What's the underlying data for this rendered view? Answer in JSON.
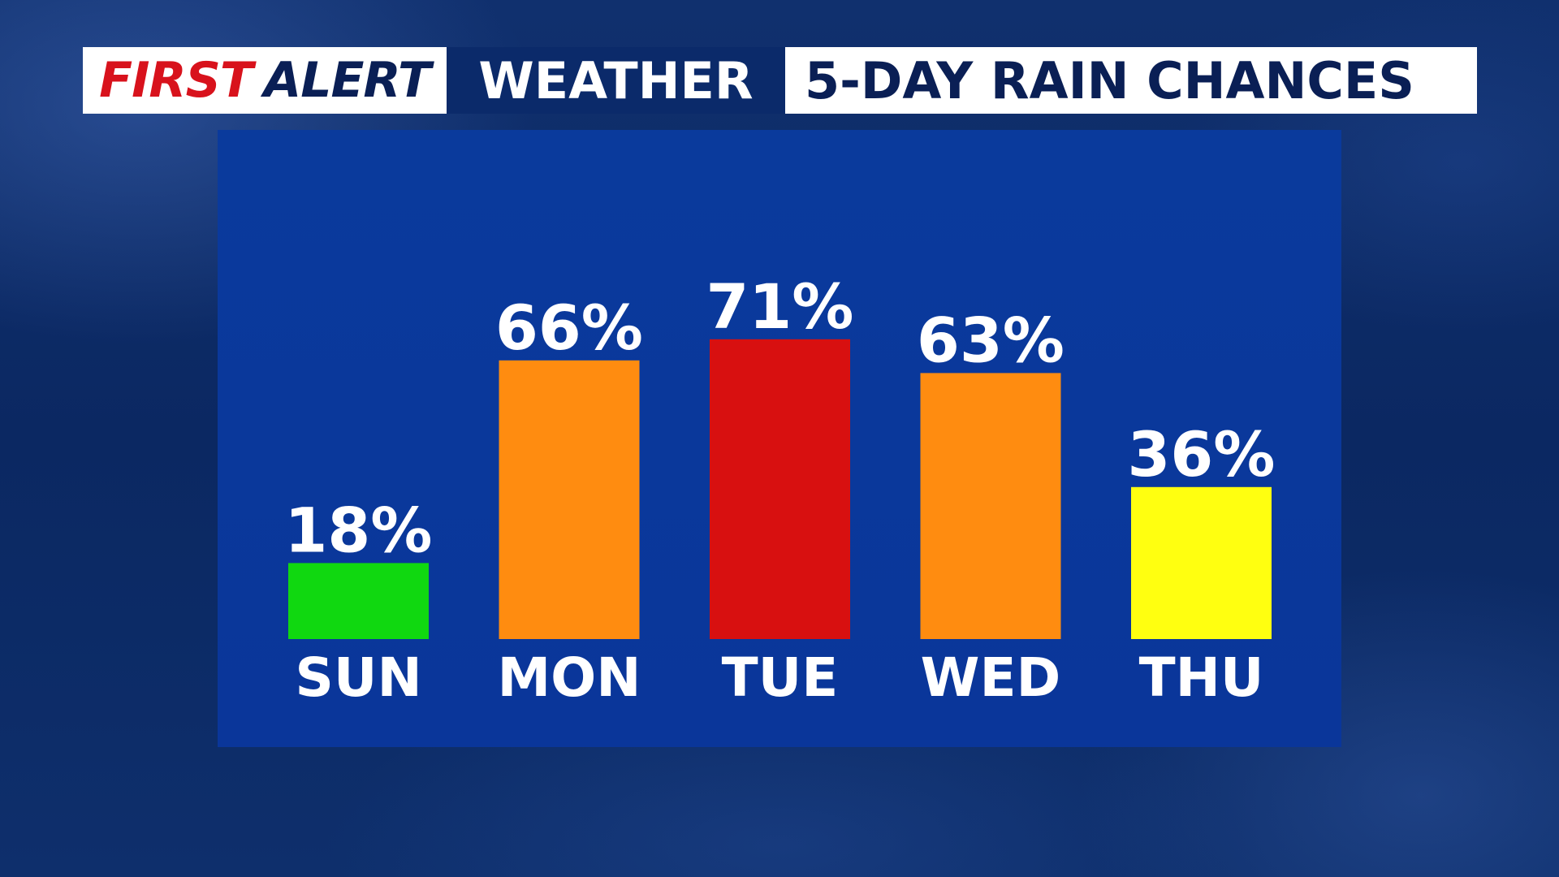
{
  "header": {
    "first": "FIRST",
    "alert": "ALERT",
    "weather": "WEATHER",
    "title": "5-DAY RAIN CHANCES"
  },
  "colors": {
    "first_red": "#d8121c",
    "navy": "#0a1f55",
    "panel_blue": "#0a3a9c",
    "low": "#10d810",
    "moderate": "#ffff10",
    "high": "#ff8c10",
    "very_high": "#d81010"
  },
  "chart_data": {
    "type": "bar",
    "title": "5-DAY RAIN CHANCES",
    "xlabel": "",
    "ylabel": "",
    "ylim": [
      0,
      100
    ],
    "grid": false,
    "categories": [
      "SUN",
      "MON",
      "TUE",
      "WED",
      "THU"
    ],
    "values": [
      18,
      66,
      71,
      63,
      36
    ],
    "value_labels": [
      "18%",
      "66%",
      "71%",
      "63%",
      "36%"
    ],
    "bar_colors": [
      "#10d810",
      "#ff8c10",
      "#d81010",
      "#ff8c10",
      "#ffff10"
    ]
  }
}
